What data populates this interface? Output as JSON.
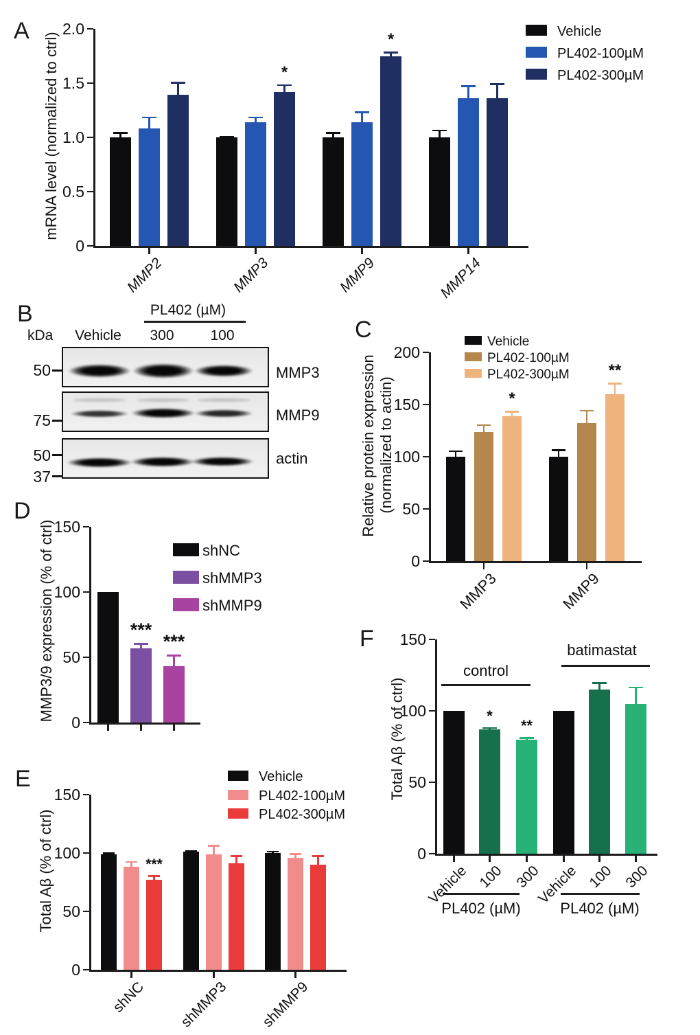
{
  "figure": {
    "panel_labels": {
      "A": "A",
      "B": "B",
      "C": "C",
      "D": "D",
      "E": "E",
      "F": "F"
    }
  },
  "western_blot": {
    "kda_label": "kDa",
    "treatment_header": "PL402 (µM)",
    "lanes": [
      "Vehicle",
      "300",
      "100"
    ],
    "rows": [
      {
        "protein": "MMP3",
        "markers": [
          "50"
        ]
      },
      {
        "protein": "MMP9",
        "markers": [
          "75"
        ]
      },
      {
        "protein": "actin",
        "markers": [
          "50",
          "37"
        ]
      }
    ]
  },
  "chart_data": [
    {
      "panel": "A",
      "type": "bar",
      "ylabel": "mRNA level  (normalized to ctrl)",
      "ylim": [
        0,
        2.0
      ],
      "yticks": [
        "0",
        "0.5",
        "1.0",
        "1.5",
        "2.0"
      ],
      "categories": [
        "MMP2",
        "MMP3",
        "MMP9",
        "MMP14"
      ],
      "series": [
        {
          "name": "Vehicle",
          "color": "#0d0c0e",
          "values": [
            1.0,
            1.0,
            1.0,
            1.0
          ],
          "errors": [
            0.05,
            0.01,
            0.05,
            0.07
          ]
        },
        {
          "name": "PL402-100µM",
          "color": "#2456b2",
          "values": [
            1.08,
            1.14,
            1.14,
            1.36
          ],
          "errors": [
            0.11,
            0.05,
            0.1,
            0.12
          ]
        },
        {
          "name": "PL402-300µM",
          "color": "#202f62",
          "values": [
            1.39,
            1.42,
            1.75,
            1.36
          ],
          "errors": [
            0.12,
            0.07,
            0.04,
            0.14
          ]
        }
      ],
      "annotations": [
        {
          "cat": 1,
          "series": 2,
          "text": "*"
        },
        {
          "cat": 2,
          "series": 2,
          "text": "*"
        }
      ],
      "legend_position": "top-right",
      "grid": false
    },
    {
      "panel": "C",
      "type": "bar",
      "ylabel": "Relative protein expression",
      "ylabel2": "(normalized to actin)",
      "ylim": [
        0,
        200
      ],
      "yticks": [
        "0",
        "50",
        "100",
        "150",
        "200"
      ],
      "categories": [
        "MMP3",
        "MMP9"
      ],
      "series": [
        {
          "name": "Vehicle",
          "color": "#0d0c0e",
          "values": [
            100,
            100
          ],
          "errors": [
            6,
            7
          ]
        },
        {
          "name": "PL402-100µM",
          "color": "#b5874c",
          "values": [
            124,
            132
          ],
          "errors": [
            7,
            13
          ]
        },
        {
          "name": "PL402-300µM",
          "color": "#efb37e",
          "values": [
            139,
            160
          ],
          "errors": [
            5,
            11
          ]
        }
      ],
      "annotations": [
        {
          "cat": 0,
          "series": 2,
          "text": "*"
        },
        {
          "cat": 1,
          "series": 2,
          "text": "**"
        }
      ],
      "legend_position": "top",
      "grid": false
    },
    {
      "panel": "D",
      "type": "bar",
      "ylabel": "MMP3/9 expression  (%  of ctrl)",
      "ylim": [
        0,
        150
      ],
      "yticks": [
        "0",
        "50",
        "100",
        "150"
      ],
      "categories": [
        ""
      ],
      "series": [
        {
          "name": "shNC",
          "color": "#0d0c0e",
          "values": [
            100
          ],
          "errors": [
            0
          ]
        },
        {
          "name": "shMMP3",
          "color": "#7b4fa2",
          "values": [
            57
          ],
          "errors": [
            4
          ]
        },
        {
          "name": "shMMP9",
          "color": "#a943a1",
          "values": [
            43
          ],
          "errors": [
            9
          ]
        }
      ],
      "annotations": [
        {
          "cat": 0,
          "series": 1,
          "text": "***"
        },
        {
          "cat": 0,
          "series": 2,
          "text": "***"
        }
      ],
      "legend_position": "right",
      "grid": false
    },
    {
      "panel": "E",
      "type": "bar",
      "ylabel": "Total Aβ (% of ctrl)",
      "ylim": [
        0,
        150
      ],
      "yticks": [
        "0",
        "50",
        "100",
        "150"
      ],
      "categories": [
        "shNC",
        "shMMP3",
        "shMMP9"
      ],
      "series": [
        {
          "name": "Vehicle",
          "color": "#0d0c0e",
          "values": [
            99,
            101,
            100
          ],
          "errors": [
            1.5,
            1.5,
            2
          ]
        },
        {
          "name": "PL402-100µM",
          "color": "#f08c8c",
          "values": [
            88,
            99,
            96
          ],
          "errors": [
            5,
            8,
            4
          ]
        },
        {
          "name": "PL402-300µM",
          "color": "#ea3b3b",
          "values": [
            77,
            91,
            90
          ],
          "errors": [
            4,
            7,
            8
          ]
        }
      ],
      "annotations": [
        {
          "cat": 0,
          "series": 2,
          "text": "***"
        }
      ],
      "legend_position": "top-right",
      "grid": false
    },
    {
      "panel": "F",
      "type": "bar",
      "ylabel": "Total Aβ (% of ctrl)",
      "ylim": [
        0,
        150
      ],
      "yticks": [
        "0",
        "50",
        "100",
        "150"
      ],
      "categories": [
        "Vehicle",
        "100",
        "300",
        "Vehicle",
        "100",
        "300"
      ],
      "series": [
        {
          "name": "Total Aβ",
          "colors": [
            "#0d0c0e",
            "#17704c",
            "#28b277",
            "#0d0c0e",
            "#17704c",
            "#28b277"
          ],
          "values": [
            100,
            87,
            80,
            100,
            115,
            105
          ],
          "errors": [
            0,
            1.5,
            1.5,
            0,
            5,
            12
          ]
        }
      ],
      "annotations": [
        {
          "cat": 1,
          "series": 0,
          "text": "*"
        },
        {
          "cat": 2,
          "series": 0,
          "text": "**"
        }
      ],
      "group_labels": [
        "control",
        "batimastat"
      ],
      "sub_axis_labels": [
        "PL402 (µM)",
        "PL402 (µM)"
      ],
      "grid": false
    }
  ]
}
